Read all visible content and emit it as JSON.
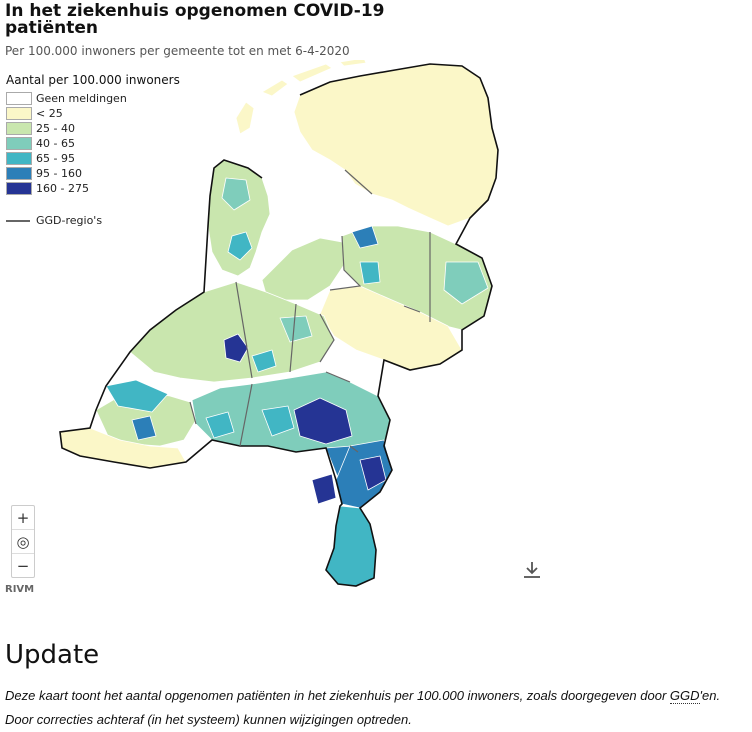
{
  "title": "In het ziekenhuis opgenomen COVID-19 patiënten",
  "subtitle": "Per 100.000 inwoners per gemeente tot en met 6-4-2020",
  "legend": {
    "title": "Aantal per 100.000 inwoners",
    "items": [
      {
        "label": "Geen meldingen",
        "color": "#ffffff"
      },
      {
        "label": "< 25",
        "color": "#fbf7c8"
      },
      {
        "label": "25 - 40",
        "color": "#c9e6ae"
      },
      {
        "label": "40 - 65",
        "color": "#7fcdbb"
      },
      {
        "label": "65 - 95",
        "color": "#41b6c4"
      },
      {
        "label": "95 - 160",
        "color": "#2c7fb8"
      },
      {
        "label": "160 - 275",
        "color": "#253494"
      }
    ],
    "boundary_label": "GGD-regio's",
    "boundary_color": "#666666"
  },
  "controls": {
    "zoom_in": "+",
    "reset": "◎",
    "zoom_out": "−",
    "download_icon": "download-icon"
  },
  "source": "RIVM",
  "update": {
    "heading": "Update",
    "text_before": "Deze kaart toont het aantal opgenomen patiënten in het ziekenhuis per 100.000 inwoners, zoals doorgegeven door ",
    "abbr": "GGD",
    "text_after": "'en. Door correcties achteraf (in het systeem) kunnen wijzigingen optreden."
  }
}
